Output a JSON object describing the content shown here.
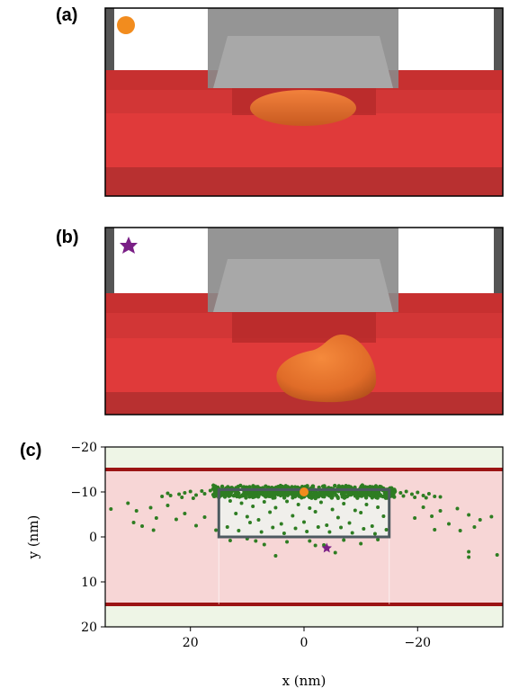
{
  "panels": {
    "a": {
      "label": "(a)"
    },
    "b": {
      "label": "(b)"
    },
    "c": {
      "label": "(c)"
    }
  },
  "colors": {
    "substrate_red": "#e03a3a",
    "bead_orange": "#f28c1e",
    "blob_orange": "#e8742e",
    "star_purple": "#7a1f86",
    "trap_gray": "#808080",
    "scatter_green": "#2e7d22",
    "stripe_dark_red": "#9b1414",
    "band_pink": "#f7d6d6",
    "band_green": "#eef5e6",
    "box_gray": "#4d5a60"
  },
  "icons": {
    "marker_a": "orange-circle-marker",
    "marker_b": "purple-star-marker"
  },
  "chart_data": {
    "type": "scatter",
    "xlabel": "x (nm)",
    "ylabel": "y (nm)",
    "xlim": [
      35,
      -35
    ],
    "ylim": [
      20,
      -20
    ],
    "x_inverted": true,
    "y_inverted": true,
    "xticks": [
      "20",
      "0",
      "−20"
    ],
    "xtick_values": [
      20,
      0,
      -20
    ],
    "yticks": [
      "−20",
      "−10",
      "0",
      "10",
      "20"
    ],
    "ytick_values": [
      -20,
      -10,
      0,
      10,
      20
    ],
    "grid": false,
    "channel_walls_y": [
      -15,
      15
    ],
    "box": {
      "x": [
        -15,
        15
      ],
      "y": [
        -10.5,
        0
      ]
    },
    "orange_marker": {
      "x": 0,
      "y": -10
    },
    "star_marker": {
      "x": -4,
      "y": 2.5
    },
    "scatter_points": [
      [
        25,
        -9
      ],
      [
        23.5,
        -9.2
      ],
      [
        22,
        -9.5
      ],
      [
        21,
        -9.8
      ],
      [
        20,
        -10.1
      ],
      [
        19,
        -9.3
      ],
      [
        18,
        -10.2
      ],
      [
        17.5,
        -9.6
      ],
      [
        16.5,
        -10.3
      ],
      [
        16,
        -9.4
      ],
      [
        15.5,
        -10
      ],
      [
        24,
        -9.7
      ],
      [
        21.5,
        -8.8
      ],
      [
        19.5,
        -8.6
      ],
      [
        -16,
        -10.2
      ],
      [
        -17,
        -9.8
      ],
      [
        -18,
        -10.1
      ],
      [
        -19,
        -9.5
      ],
      [
        -20,
        -9.9
      ],
      [
        -21,
        -9.2
      ],
      [
        -22,
        -9.6
      ],
      [
        -23,
        -9
      ],
      [
        -17.5,
        -9.1
      ],
      [
        -19.5,
        -8.8
      ],
      [
        -21.5,
        -8.7
      ],
      [
        -24,
        -8.9
      ],
      [
        31,
        -7.5
      ],
      [
        29.5,
        -5.8
      ],
      [
        27,
        -6.5
      ],
      [
        26,
        -4.2
      ],
      [
        24,
        -7
      ],
      [
        22.5,
        -3.9
      ],
      [
        21,
        -5.2
      ],
      [
        19,
        -2.5
      ],
      [
        17.5,
        -4.4
      ],
      [
        15.5,
        -1.5
      ],
      [
        30,
        -3.2
      ],
      [
        26.5,
        -1.5
      ],
      [
        34,
        -6.2
      ],
      [
        28.5,
        -2.4
      ],
      [
        -21,
        -6.6
      ],
      [
        -22.5,
        -4.6
      ],
      [
        -24,
        -5.8
      ],
      [
        -25.5,
        -2.9
      ],
      [
        -27,
        -6.3
      ],
      [
        -29,
        -4.9
      ],
      [
        -30,
        -2.2
      ],
      [
        -31,
        -3.8
      ],
      [
        -19.5,
        -4.2
      ],
      [
        -23,
        -1.6
      ],
      [
        -27.5,
        -1.4
      ],
      [
        -33,
        -4.5
      ],
      [
        -29,
        3.3
      ],
      [
        -34,
        4
      ],
      [
        -29,
        4.5
      ],
      [
        13,
        -8
      ],
      [
        11,
        -7.5
      ],
      [
        9,
        -6.8
      ],
      [
        7,
        -7.8
      ],
      [
        5,
        -6.5
      ],
      [
        3,
        -7.9
      ],
      [
        1,
        -7.2
      ],
      [
        -1,
        -6.4
      ],
      [
        -3,
        -7.7
      ],
      [
        -5,
        -6.1
      ],
      [
        -7,
        -7.4
      ],
      [
        -9,
        -5.9
      ],
      [
        -11,
        -7.2
      ],
      [
        -13,
        -6.6
      ],
      [
        12,
        -5.2
      ],
      [
        10,
        -4.5
      ],
      [
        8,
        -3.8
      ],
      [
        6,
        -5.5
      ],
      [
        4,
        -2.9
      ],
      [
        2,
        -4.7
      ],
      [
        0,
        -3.3
      ],
      [
        -2,
        -5.6
      ],
      [
        -4,
        -2.6
      ],
      [
        -6,
        -4.3
      ],
      [
        -8,
        -3.1
      ],
      [
        -10,
        -5.4
      ],
      [
        -12,
        -2.4
      ],
      [
        -14,
        -4.6
      ],
      [
        13.5,
        -2.2
      ],
      [
        11.5,
        -1.4
      ],
      [
        9.5,
        -3.2
      ],
      [
        7.5,
        -1.1
      ],
      [
        5.5,
        -2.1
      ],
      [
        3.5,
        -0.8
      ],
      [
        1.5,
        -1.9
      ],
      [
        -0.5,
        -1.2
      ],
      [
        -2.5,
        -2.2
      ],
      [
        -4.5,
        -1.1
      ],
      [
        -6.5,
        -2.1
      ],
      [
        -8.5,
        -0.9
      ],
      [
        -10.5,
        -1.8
      ],
      [
        -12.5,
        -0.7
      ],
      [
        -14.5,
        -1.6
      ],
      [
        12,
        -9.2
      ],
      [
        9,
        -8.8
      ],
      [
        6,
        -9
      ],
      [
        2,
        -8.7
      ],
      [
        -2,
        -8.9
      ],
      [
        -6,
        -8.6
      ],
      [
        -9,
        -9.1
      ],
      [
        -12,
        -8.7
      ],
      [
        13,
        0.8
      ],
      [
        10,
        0.4
      ],
      [
        7,
        1.7
      ],
      [
        3,
        1.1
      ],
      [
        -1,
        0.9
      ],
      [
        -3.5,
        1.8
      ],
      [
        -7,
        0.7
      ],
      [
        -10,
        1.5
      ],
      [
        -13,
        0.6
      ],
      [
        5,
        4.2
      ],
      [
        -5.5,
        3.5
      ],
      [
        8.5,
        0.9
      ],
      [
        -2,
        1.9
      ]
    ],
    "dense_band": {
      "y_range": [
        -11.5,
        -8.5
      ],
      "x_range": [
        -16,
        16
      ],
      "count": 700
    }
  }
}
